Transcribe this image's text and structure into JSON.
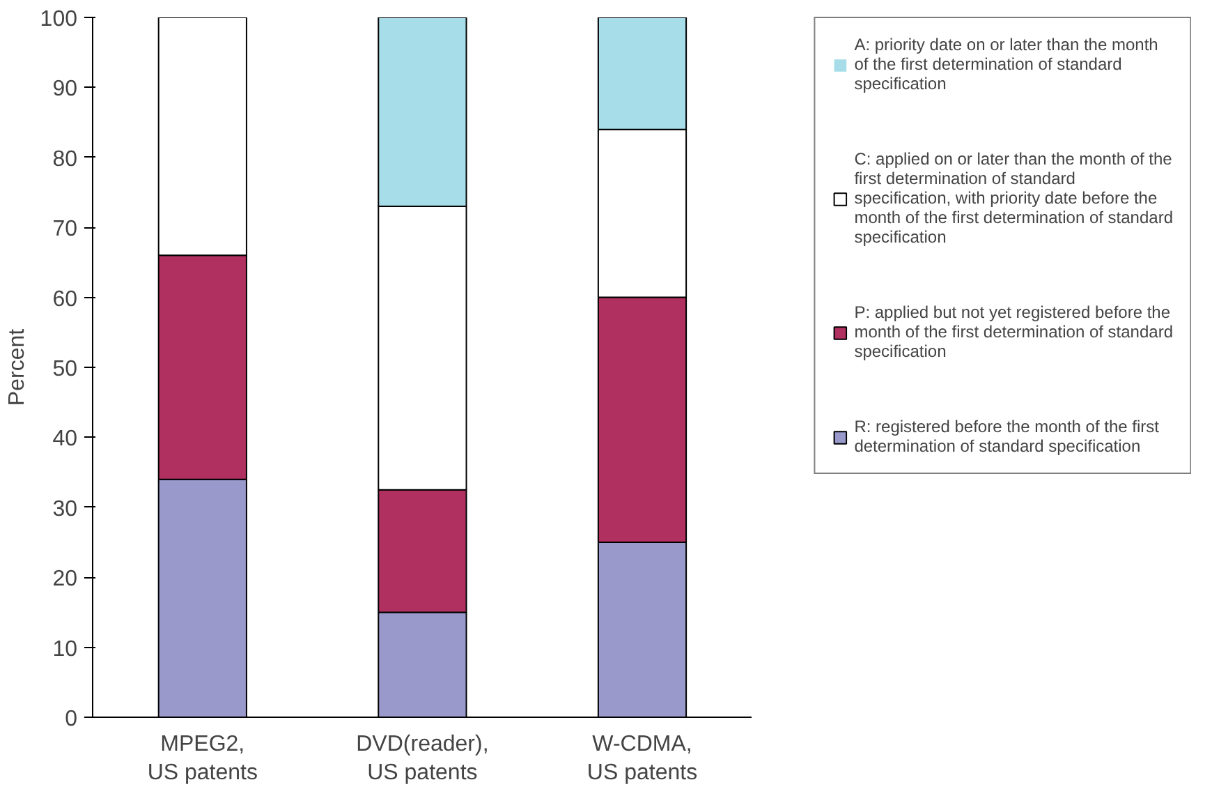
{
  "chart_data": {
    "type": "bar",
    "stacked": true,
    "ylabel": "Percent",
    "categories": [
      "MPEG2,\nUS patents",
      "DVD(reader),\nUS patents",
      "W-CDMA,\nUS patents"
    ],
    "series": [
      {
        "name": "R: registered before the month of the first determination of standard specification",
        "color": "#9999cc",
        "values": [
          34,
          15,
          25
        ]
      },
      {
        "name": "P: applied but not yet registered before the month of the first determination of standard specification",
        "color": "#b03060",
        "values": [
          32,
          17.5,
          35
        ]
      },
      {
        "name": "C: applied on or later than the month of the first determination of standard specification, with priority date before the month of the first determination of standard specification",
        "color": "#ffffff",
        "values": [
          34,
          40.5,
          24
        ]
      },
      {
        "name": "A: priority date on or later than the month of the first determination of standard specification",
        "color": "#a6dde8",
        "values": [
          0,
          27,
          16
        ]
      }
    ],
    "ylim": [
      0,
      100
    ],
    "yticks": [
      0,
      10,
      20,
      30,
      40,
      50,
      60,
      70,
      80,
      90,
      100
    ],
    "grid": false,
    "legend": "right"
  }
}
